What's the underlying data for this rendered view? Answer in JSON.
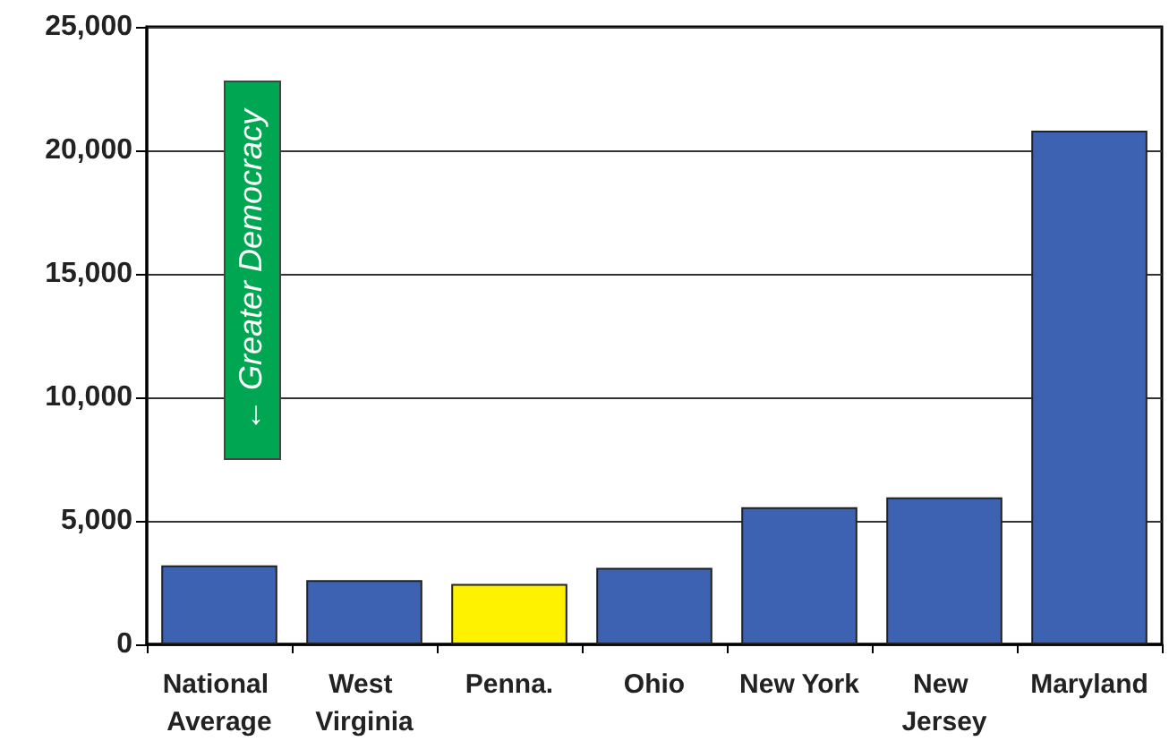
{
  "chart_data": {
    "type": "bar",
    "categories": [
      "National Average",
      "West Virginia",
      "Penna.",
      "Ohio",
      "New York",
      "New Jersey",
      "Maryland"
    ],
    "values": [
      3200,
      2600,
      2450,
      3100,
      5550,
      5950,
      20800
    ],
    "colors": [
      "#3d62b2",
      "#3d62b2",
      "#fff200",
      "#3d62b2",
      "#3d62b2",
      "#3d62b2",
      "#3d62b2"
    ],
    "ylim": [
      0,
      25000
    ],
    "yticks": [
      0,
      {
        "value": 5000,
        "label": "5,000"
      },
      {
        "value": 10000,
        "label": "10,000"
      },
      {
        "value": 15000,
        "label": "15,000"
      },
      {
        "value": 20000,
        "label": "20,000"
      },
      {
        "value": 25000,
        "label": "25,000"
      }
    ],
    "grid": "y",
    "annotations": [
      "← Greater Democracy"
    ]
  }
}
